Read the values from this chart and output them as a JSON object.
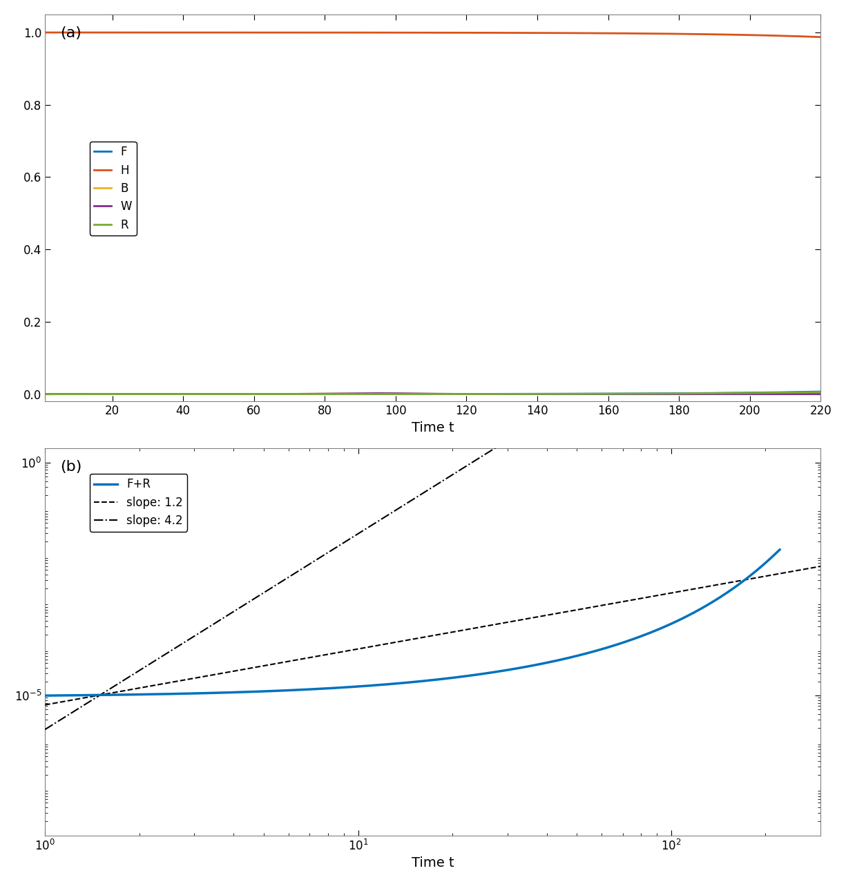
{
  "panel_a": {
    "title": "(a)",
    "xlabel": "Time t",
    "ylabel": "",
    "xlim": [
      1,
      220
    ],
    "ylim": [
      -0.02,
      1.05
    ],
    "xticks": [
      20,
      40,
      60,
      80,
      100,
      120,
      140,
      160,
      180,
      200,
      220
    ],
    "yticks": [
      0,
      0.2,
      0.4,
      0.6,
      0.8,
      1.0
    ],
    "colors": {
      "F": "#0072BD",
      "H": "#D95319",
      "B": "#EDB120",
      "W": "#7E2F8E",
      "R": "#77AC30"
    },
    "linewidth": 2.0
  },
  "panel_b": {
    "title": "(b)",
    "xlabel": "Time t",
    "ylabel": "",
    "xlim_log": [
      1,
      300
    ],
    "ylim_log": [
      1e-08,
      2
    ],
    "colors": {
      "FR": "#0072BD",
      "slope12": "#000000",
      "slope42": "#000000"
    },
    "slope12": 1.2,
    "slope42": 4.2,
    "linewidth": 2.5,
    "linewidth_ref": 1.5
  },
  "background_color": "#ffffff",
  "label_fontsize": 14,
  "tick_fontsize": 12,
  "legend_fontsize": 12
}
